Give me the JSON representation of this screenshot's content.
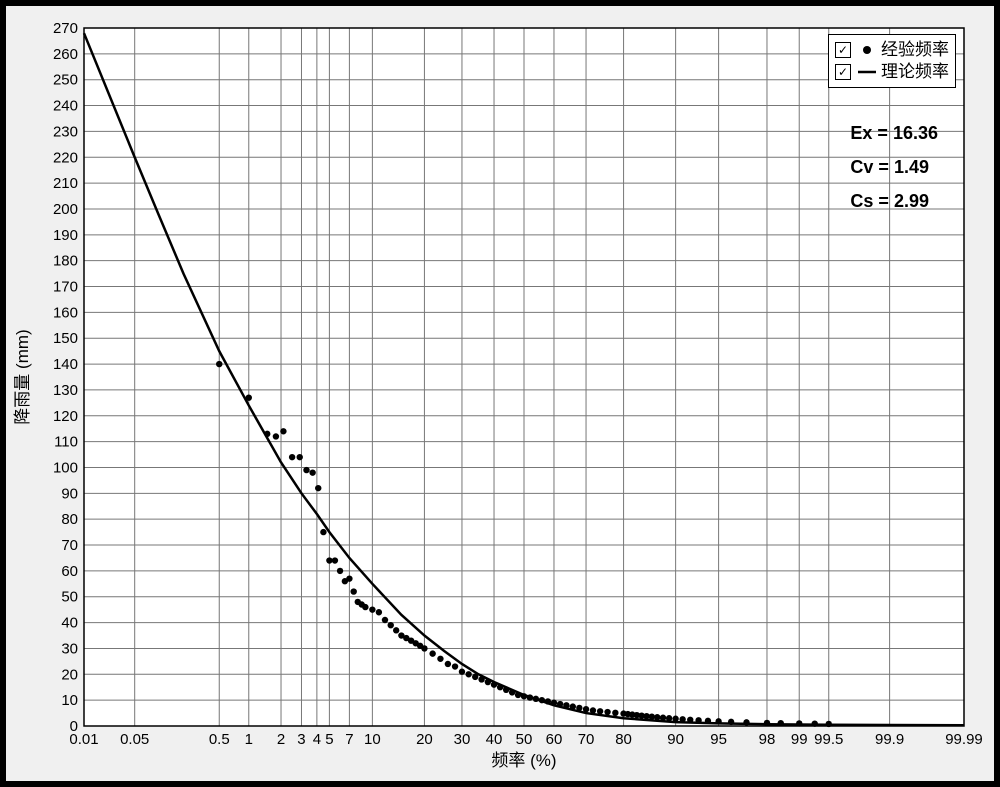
{
  "chart": {
    "type": "line+scatter (probability-paper)",
    "background_color": "#ffffff",
    "frame_color": "#000000",
    "grid_color": "#777777",
    "curve_color": "#000000",
    "marker_color": "#000000",
    "curve_width": 2.5,
    "marker_radius": 3.2,
    "x_axis": {
      "label": "频率 (%)",
      "scale": "normal-probability",
      "ticks": [
        0.01,
        0.05,
        0.5,
        1,
        2,
        3,
        4,
        5,
        7,
        10,
        20,
        30,
        40,
        50,
        60,
        70,
        80,
        90,
        95,
        98,
        99,
        99.5,
        99.9,
        99.99
      ],
      "tick_labels": [
        "0.01",
        "0.05",
        "0.5",
        "1",
        "2",
        "3",
        "4",
        "5",
        "7",
        "10",
        "20",
        "30",
        "40",
        "50",
        "60",
        "70",
        "80",
        "90",
        "95",
        "98",
        "99",
        "99.5",
        "99.9",
        "99.99"
      ],
      "label_fontsize": 17,
      "tick_fontsize": 15
    },
    "y_axis": {
      "label": "降雨量 (mm)",
      "min": 0,
      "max": 270,
      "tick_step": 10,
      "label_fontsize": 17,
      "tick_fontsize": 15
    },
    "theoretical_curve": {
      "P": [
        0.01,
        0.05,
        0.1,
        0.2,
        0.5,
        1,
        2,
        3,
        4,
        5,
        7,
        10,
        15,
        20,
        25,
        30,
        35,
        40,
        50,
        60,
        70,
        80,
        90,
        95,
        98,
        99,
        99.5,
        99.9,
        99.99
      ],
      "Q": [
        268,
        220,
        198,
        175,
        145,
        124,
        102,
        90,
        82,
        75,
        65,
        55,
        43,
        35,
        29,
        24,
        20,
        17,
        12,
        8,
        5,
        3,
        1.5,
        1,
        0.7,
        0.6,
        0.5,
        0.4,
        0.3
      ]
    },
    "empirical_points": {
      "P": [
        0.5,
        1,
        1.5,
        1.8,
        2.1,
        2.5,
        2.9,
        3.3,
        3.7,
        4.1,
        4.5,
        5,
        5.5,
        6,
        6.5,
        7,
        7.5,
        8,
        8.5,
        9,
        10,
        11,
        12,
        13,
        14,
        15,
        16,
        17,
        18,
        19,
        20,
        22,
        24,
        26,
        28,
        30,
        32,
        34,
        36,
        38,
        40,
        42,
        44,
        46,
        48,
        50,
        52,
        54,
        56,
        58,
        60,
        62,
        64,
        66,
        68,
        70,
        72,
        74,
        76,
        78,
        80,
        81,
        82,
        83,
        84,
        85,
        86,
        87,
        88,
        89,
        90,
        91,
        92,
        93,
        94,
        95,
        96,
        97,
        98,
        98.5,
        99,
        99.3,
        99.5
      ],
      "Q": [
        140,
        127,
        113,
        112,
        114,
        104,
        104,
        99,
        98,
        92,
        75,
        64,
        64,
        60,
        56,
        57,
        52,
        48,
        47,
        46,
        45,
        44,
        41,
        39,
        37,
        35,
        34,
        33,
        32,
        31,
        30,
        28,
        26,
        24,
        23,
        21,
        20,
        19,
        18,
        17,
        16,
        15,
        14,
        13,
        12,
        11.5,
        11,
        10.5,
        10,
        9.5,
        9,
        8.5,
        8,
        7.5,
        7,
        6.5,
        6,
        5.7,
        5.4,
        5.1,
        4.8,
        4.6,
        4.4,
        4.2,
        4,
        3.8,
        3.6,
        3.4,
        3.2,
        3,
        2.8,
        2.6,
        2.4,
        2.2,
        2,
        1.8,
        1.6,
        1.4,
        1.2,
        1.1,
        1,
        0.9,
        0.8
      ]
    },
    "legend": {
      "empirical": "经验频率",
      "theoretical": "理论频率"
    },
    "stats": {
      "Ex_label": "Ex",
      "Ex": "16.36",
      "Cv_label": "Cv",
      "Cv": "1.49",
      "Cs_label": "Cs",
      "Cs": "2.99",
      "eq": "="
    }
  }
}
